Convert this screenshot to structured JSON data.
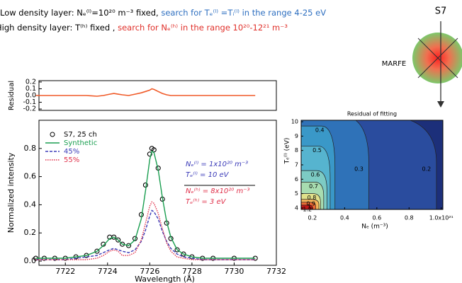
{
  "notes": [
    [
      {
        "text": "Low density layer: Nₑ⁽ˡ⁾=10²⁰ m⁻³ fixed, ",
        "color": "#000000"
      },
      {
        "text": "search for Tₑ⁽ˡ⁾ =Tᵢ⁽ˡ⁾ in the range 4-25 eV",
        "color": "#2e6fc0"
      }
    ],
    [
      {
        "text": "High density layer: T⁽ʰ⁾ fixed , ",
        "color": "#000000"
      },
      {
        "text": "search for Nₑ⁽ʰ⁾ in the range 10²⁰-12²¹ m⁻³",
        "color": "#e0302a"
      }
    ]
  ],
  "diagram": {
    "chord_label": "S7",
    "region_label": "MARFE"
  },
  "chart_data": [
    {
      "type": "line",
      "xlabel": "Wavelength (Å)",
      "ylabel": "Normalized intensity",
      "x": [
        7720.6,
        7721,
        7721.5,
        7722,
        7722.5,
        7723,
        7723.5,
        7723.8,
        7724.1,
        7724.3,
        7724.5,
        7724.7,
        7725,
        7725.3,
        7725.6,
        7725.8,
        7726,
        7726.1,
        7726.2,
        7726.4,
        7726.6,
        7726.8,
        7727,
        7727.3,
        7727.6,
        7728,
        7728.5,
        7729,
        7730,
        7731
      ],
      "xlim": [
        7720.75,
        7732
      ],
      "xticks": [
        7722,
        7724,
        7726,
        7728,
        7730,
        7732
      ],
      "ylim": [
        -0.03,
        1.0
      ],
      "yticks": [
        {
          "value": 0,
          "label": "0.0"
        },
        0.2,
        0.4,
        0.6,
        0.8
      ],
      "series": [
        {
          "name": "S7, 25 ch",
          "color": "#000000",
          "marker": "circle",
          "values": [
            0.02,
            0.02,
            0.02,
            0.02,
            0.03,
            0.04,
            0.07,
            0.12,
            0.17,
            0.17,
            0.15,
            0.12,
            0.11,
            0.16,
            0.33,
            0.54,
            0.76,
            0.8,
            0.79,
            0.66,
            0.44,
            0.27,
            0.16,
            0.08,
            0.05,
            0.03,
            0.02,
            0.02,
            0.02,
            0.02
          ]
        },
        {
          "name": "Synthetic",
          "color": "#1a9e50",
          "dash": "solid",
          "values": [
            0.02,
            0.02,
            0.02,
            0.02,
            0.03,
            0.04,
            0.07,
            0.11,
            0.16,
            0.17,
            0.15,
            0.12,
            0.11,
            0.15,
            0.3,
            0.5,
            0.72,
            0.78,
            0.77,
            0.65,
            0.45,
            0.28,
            0.17,
            0.08,
            0.05,
            0.03,
            0.02,
            0.02,
            0.02,
            0.02
          ]
        },
        {
          "name": "45%",
          "color": "#3a3ab8",
          "dash": "dashed",
          "values": [
            0.01,
            0.01,
            0.01,
            0.01,
            0.02,
            0.03,
            0.04,
            0.06,
            0.08,
            0.09,
            0.08,
            0.07,
            0.06,
            0.08,
            0.14,
            0.22,
            0.32,
            0.36,
            0.35,
            0.3,
            0.21,
            0.14,
            0.09,
            0.05,
            0.03,
            0.02,
            0.01,
            0.01,
            0.01,
            0.01
          ]
        },
        {
          "name": "55%",
          "color": "#e0304a",
          "dash": "dotted",
          "values": [
            0.01,
            0.01,
            0.01,
            0.01,
            0.01,
            0.01,
            0.02,
            0.04,
            0.07,
            0.08,
            0.07,
            0.04,
            0.04,
            0.06,
            0.15,
            0.27,
            0.39,
            0.42,
            0.41,
            0.34,
            0.23,
            0.13,
            0.07,
            0.03,
            0.02,
            0.01,
            0.01,
            0.01,
            0.01,
            0.01
          ]
        }
      ],
      "residual": {
        "ylabel": "Residual",
        "color": "#f05a28",
        "ylim": [
          -0.22,
          0.22
        ],
        "yticks": [
          0.2,
          0.1,
          {
            "value": 0,
            "label": "0.0"
          },
          -0.1,
          -0.2
        ],
        "values": [
          0,
          0,
          0,
          0,
          0,
          0,
          -0.01,
          0,
          0.02,
          0.03,
          0.02,
          0.01,
          0,
          0.02,
          0.04,
          0.06,
          0.08,
          0.1,
          0.09,
          0.06,
          0.03,
          0.01,
          0,
          0,
          0,
          0,
          0,
          0,
          0,
          0
        ]
      },
      "annotations": [
        {
          "text": "Nₑ⁽ˡ⁾ = 1x10²⁰ m⁻³",
          "color": "#3a3ab8"
        },
        {
          "text": "Tₑ⁽ˡ⁾ = 10 eV",
          "color": "#3a3ab8"
        },
        {
          "text": "Nₑ⁽ʰ⁾ = 8x10²⁰ m⁻³",
          "color": "#e0304a"
        },
        {
          "text": "Tₑ⁽ʰ⁾ = 3 eV",
          "color": "#e0304a"
        }
      ]
    },
    {
      "type": "contour",
      "title": "Residual of fitting",
      "xlabel": "Nₑ (m⁻³)",
      "ylabel": "Tₑ⁽ˡ⁾ (eV)",
      "xlim": [
        0.13,
        1.01
      ],
      "xticks": [
        0.2,
        0.4,
        0.6,
        0.8,
        {
          "value": 1,
          "label": "1.0x10²¹"
        }
      ],
      "ylim": [
        3.9,
        10.1
      ],
      "yticks": [
        4,
        5,
        6,
        7,
        8,
        9,
        10
      ],
      "levels": [
        0.2,
        0.3,
        0.4,
        0.5,
        0.6,
        0.7,
        0.8,
        0.9,
        1,
        1.2
      ]
    }
  ]
}
